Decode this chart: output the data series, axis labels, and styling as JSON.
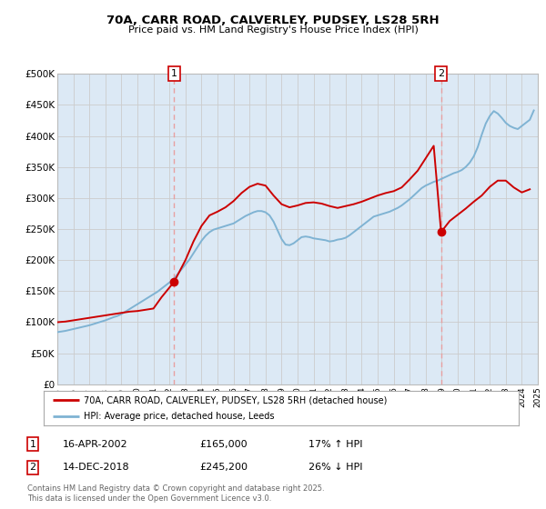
{
  "title": "70A, CARR ROAD, CALVERLEY, PUDSEY, LS28 5RH",
  "subtitle": "Price paid vs. HM Land Registry's House Price Index (HPI)",
  "legend_label_red": "70A, CARR ROAD, CALVERLEY, PUDSEY, LS28 5RH (detached house)",
  "legend_label_blue": "HPI: Average price, detached house, Leeds",
  "marker1_date": 2002.29,
  "marker1_value": 165000,
  "marker1_text": "16-APR-2002",
  "marker1_price": "£165,000",
  "marker1_hpi": "17% ↑ HPI",
  "marker2_date": 2018.96,
  "marker2_value": 245200,
  "marker2_text": "14-DEC-2018",
  "marker2_price": "£245,200",
  "marker2_hpi": "26% ↓ HPI",
  "xmin": 1995,
  "xmax": 2025,
  "ymin": 0,
  "ymax": 500000,
  "yticks": [
    0,
    50000,
    100000,
    150000,
    200000,
    250000,
    300000,
    350000,
    400000,
    450000,
    500000
  ],
  "ytick_labels": [
    "£0",
    "£50K",
    "£100K",
    "£150K",
    "£200K",
    "£250K",
    "£300K",
    "£350K",
    "£400K",
    "£450K",
    "£500K"
  ],
  "red_color": "#cc0000",
  "blue_color": "#7fb3d3",
  "vline_color": "#e8a0a0",
  "grid_color": "#cccccc",
  "bg_color": "#dce9f5",
  "footer": "Contains HM Land Registry data © Crown copyright and database right 2025.\nThis data is licensed under the Open Government Licence v3.0.",
  "hpi_x": [
    1995.0,
    1995.25,
    1995.5,
    1995.75,
    1996.0,
    1996.25,
    1996.5,
    1996.75,
    1997.0,
    1997.25,
    1997.5,
    1997.75,
    1998.0,
    1998.25,
    1998.5,
    1998.75,
    1999.0,
    1999.25,
    1999.5,
    1999.75,
    2000.0,
    2000.25,
    2000.5,
    2000.75,
    2001.0,
    2001.25,
    2001.5,
    2001.75,
    2002.0,
    2002.25,
    2002.5,
    2002.75,
    2003.0,
    2003.25,
    2003.5,
    2003.75,
    2004.0,
    2004.25,
    2004.5,
    2004.75,
    2005.0,
    2005.25,
    2005.5,
    2005.75,
    2006.0,
    2006.25,
    2006.5,
    2006.75,
    2007.0,
    2007.25,
    2007.5,
    2007.75,
    2008.0,
    2008.25,
    2008.5,
    2008.75,
    2009.0,
    2009.25,
    2009.5,
    2009.75,
    2010.0,
    2010.25,
    2010.5,
    2010.75,
    2011.0,
    2011.25,
    2011.5,
    2011.75,
    2012.0,
    2012.25,
    2012.5,
    2012.75,
    2013.0,
    2013.25,
    2013.5,
    2013.75,
    2014.0,
    2014.25,
    2014.5,
    2014.75,
    2015.0,
    2015.25,
    2015.5,
    2015.75,
    2016.0,
    2016.25,
    2016.5,
    2016.75,
    2017.0,
    2017.25,
    2017.5,
    2017.75,
    2018.0,
    2018.25,
    2018.5,
    2018.75,
    2019.0,
    2019.25,
    2019.5,
    2019.75,
    2020.0,
    2020.25,
    2020.5,
    2020.75,
    2021.0,
    2021.25,
    2021.5,
    2021.75,
    2022.0,
    2022.25,
    2022.5,
    2022.75,
    2023.0,
    2023.25,
    2023.5,
    2023.75,
    2024.0,
    2024.25,
    2024.5,
    2024.75
  ],
  "hpi_y": [
    84000,
    85000,
    86000,
    87500,
    89000,
    90500,
    92000,
    93500,
    95000,
    97000,
    99000,
    101000,
    103000,
    105500,
    108000,
    110000,
    113000,
    117000,
    121000,
    125000,
    129000,
    133000,
    137000,
    141000,
    145000,
    149000,
    154000,
    159000,
    164000,
    169000,
    177000,
    185000,
    193000,
    201000,
    211000,
    221000,
    231000,
    239000,
    245000,
    249000,
    251000,
    253000,
    255000,
    257000,
    259000,
    263000,
    267000,
    271000,
    274000,
    277000,
    279000,
    279000,
    277000,
    272000,
    262000,
    248000,
    234000,
    225000,
    224000,
    227000,
    232000,
    237000,
    238000,
    237000,
    235000,
    234000,
    233000,
    232000,
    230000,
    231000,
    233000,
    234000,
    236000,
    240000,
    245000,
    250000,
    255000,
    260000,
    265000,
    270000,
    272000,
    274000,
    276000,
    278000,
    281000,
    284000,
    288000,
    293000,
    298000,
    304000,
    310000,
    316000,
    320000,
    323000,
    326000,
    328000,
    331000,
    334000,
    337000,
    340000,
    342000,
    345000,
    350000,
    357000,
    367000,
    382000,
    402000,
    420000,
    432000,
    440000,
    436000,
    429000,
    421000,
    416000,
    413000,
    411000,
    416000,
    421000,
    426000,
    441000
  ],
  "red_x": [
    1995.0,
    1995.5,
    1996.0,
    1996.5,
    1997.0,
    1997.5,
    1998.0,
    1998.5,
    1999.0,
    1999.5,
    2000.0,
    2000.5,
    2001.0,
    2001.5,
    2002.29,
    2003.0,
    2003.5,
    2004.0,
    2004.5,
    2005.0,
    2005.5,
    2006.0,
    2006.5,
    2007.0,
    2007.5,
    2008.0,
    2008.5,
    2009.0,
    2009.5,
    2010.0,
    2010.5,
    2011.0,
    2011.5,
    2012.0,
    2012.5,
    2013.0,
    2013.5,
    2014.0,
    2014.5,
    2015.0,
    2015.5,
    2016.0,
    2016.5,
    2017.0,
    2017.5,
    2018.0,
    2018.5,
    2018.96,
    2019.5,
    2020.0,
    2020.5,
    2021.0,
    2021.5,
    2022.0,
    2022.5,
    2023.0,
    2023.5,
    2024.0,
    2024.5
  ],
  "red_y": [
    100000,
    101000,
    103000,
    105000,
    107000,
    109000,
    111000,
    113000,
    115000,
    117000,
    118000,
    120000,
    122000,
    140000,
    165000,
    200000,
    230000,
    255000,
    272000,
    278000,
    285000,
    295000,
    308000,
    318000,
    323000,
    320000,
    304000,
    290000,
    285000,
    288000,
    292000,
    293000,
    291000,
    287000,
    284000,
    287000,
    290000,
    294000,
    299000,
    304000,
    308000,
    311000,
    317000,
    330000,
    344000,
    364000,
    384000,
    245200,
    263000,
    273000,
    283000,
    294000,
    304000,
    318000,
    328000,
    328000,
    317000,
    309000,
    314000
  ]
}
